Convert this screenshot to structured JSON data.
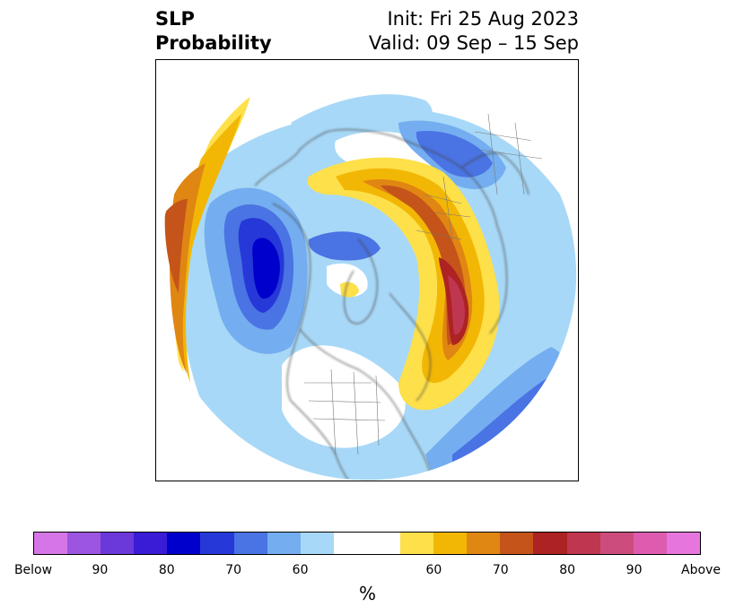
{
  "title": {
    "left_line1": "SLP",
    "left_line2": "Probability",
    "right_line1": "Init: Fri 25 Aug 2023",
    "right_line2": "Valid: 09 Sep – 15 Sep"
  },
  "colorbar": {
    "colors": [
      "#d676e6",
      "#9c55e0",
      "#6b38d9",
      "#3a1bd6",
      "#0000cc",
      "#2638d8",
      "#4a73e3",
      "#74aef0",
      "#a8d8f7",
      "#ffffff",
      "#ffffff",
      "#fde04a",
      "#f2b705",
      "#e08612",
      "#c4541a",
      "#ad2222",
      "#bf3650",
      "#cc4d7d",
      "#de5cb0",
      "#e676de"
    ],
    "tick_labels": [
      "Below",
      "90",
      "80",
      "70",
      "60",
      "60",
      "70",
      "80",
      "90",
      "Above"
    ],
    "unit": "%"
  },
  "map": {
    "projection": "north-polar-stereographic",
    "field": "SLP Probability",
    "colors": {
      "below_90": "#0000cc",
      "below_80": "#2638d8",
      "below_70": "#4a73e3",
      "below_60": "#74aef0",
      "below_50": "#a8d8f7",
      "above_50": "#fde04a",
      "above_60": "#f2b705",
      "above_70": "#e08612",
      "above_80": "#c4541a",
      "above_90": "#ad2222",
      "above_95": "#bf3650",
      "coast": "#444444"
    }
  }
}
